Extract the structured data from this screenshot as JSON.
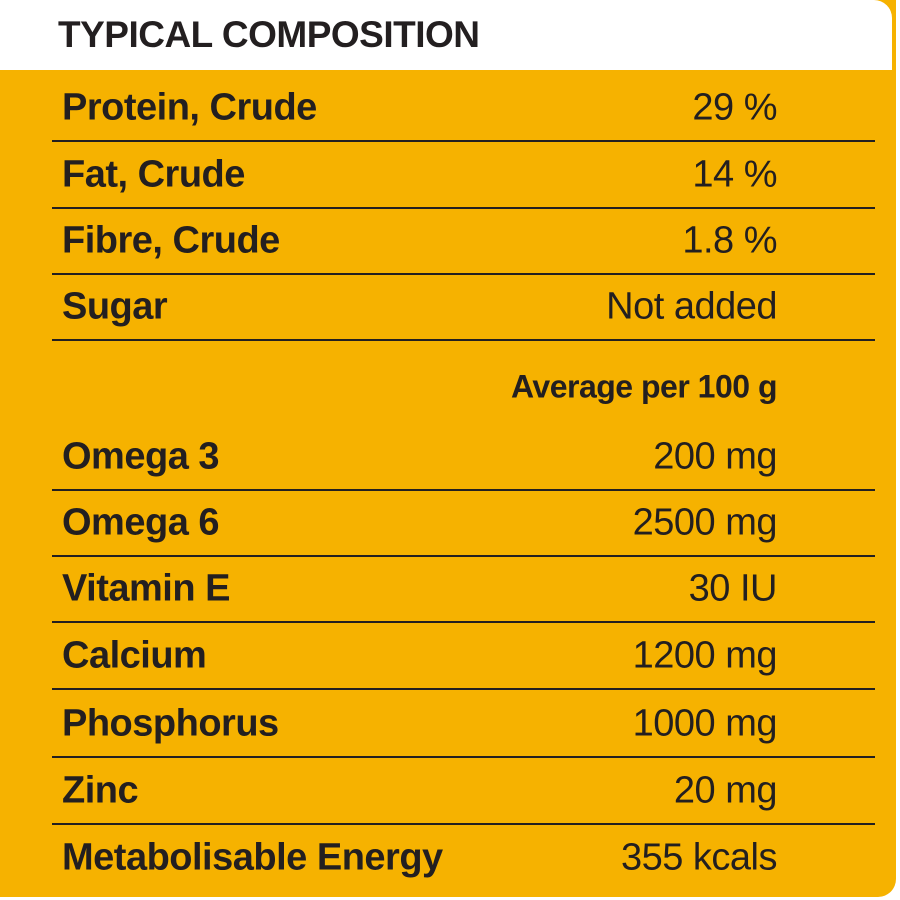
{
  "title": "TYPICAL COMPOSITION",
  "colors": {
    "background": "#f6b200",
    "text": "#231f20",
    "header_bg": "#ffffff"
  },
  "composition": [
    {
      "label": "Protein, Crude",
      "value": "29 %"
    },
    {
      "label": "Fat, Crude",
      "value": "14 %"
    },
    {
      "label": "Fibre, Crude",
      "value": "1.8 %"
    },
    {
      "label": "Sugar",
      "value": "Not added"
    }
  ],
  "average_header": "Average per 100 g",
  "nutrients": [
    {
      "label": "Omega 3",
      "value": "200 mg"
    },
    {
      "label": "Omega 6",
      "value": "2500 mg"
    },
    {
      "label": "Vitamin E",
      "value": "30 IU"
    },
    {
      "label": "Calcium",
      "value": "1200 mg"
    },
    {
      "label": "Phosphorus",
      "value": "1000 mg"
    },
    {
      "label": "Zinc",
      "value": "20 mg"
    },
    {
      "label": "Metabolisable Energy",
      "value": "355 kcals"
    }
  ]
}
